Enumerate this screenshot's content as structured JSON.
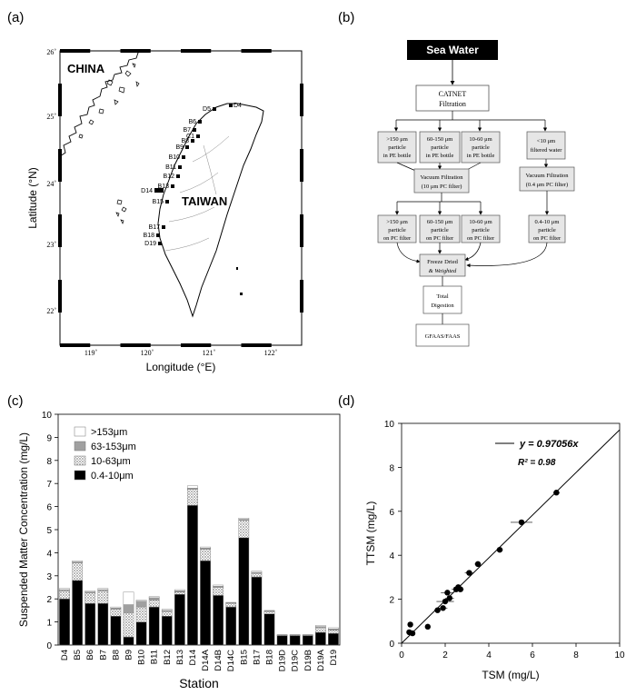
{
  "panels": {
    "a": "(a)",
    "b": "(b)",
    "c": "(c)",
    "d": "(d)"
  },
  "map": {
    "x_label": "Longitude (°E)",
    "y_label": "Latitude (°N)",
    "lon_ticks": [
      "119˚",
      "120˚",
      "121˚",
      "122˚"
    ],
    "lat_ticks": [
      "26˚",
      "25˚",
      "24˚",
      "23˚",
      "22˚"
    ],
    "china": "CHINA",
    "taiwan": "TAIWAN",
    "stations": [
      "D5",
      "D4",
      "B6",
      "B7",
      "C1",
      "B8",
      "B9",
      "B10",
      "B11",
      "B12",
      "B13",
      "D14",
      "B15",
      "B17",
      "B18",
      "D19"
    ]
  },
  "flow": {
    "sea_water": "Sea Water",
    "catnet_1": "CATNET",
    "catnet_2": "Filtration",
    "p150_1": ">150 μm",
    "p150_2": "particle",
    "p150_3": "in PE bottle",
    "p60_1": "60-150 μm",
    "p60_2": "particle",
    "p60_3": "in PE bottle",
    "p10_1": "10-60 μm",
    "p10_2": "particle",
    "p10_3": "in PE bottle",
    "fw_1": "<10 μm",
    "fw_2": "filtered water",
    "vac10_1": "Vacuum Filtration",
    "vac10_2": "(10 μm PC filter)",
    "vac04_1": "Vacuum Filtration",
    "vac04_2": "(0.4 μm PC filter)",
    "f150_1": ">150 μm",
    "f150_2": "particle",
    "f150_3": "on PC filter",
    "f60_1": "60-150 μm",
    "f60_2": "particle",
    "f60_3": "on PC filter",
    "f10_1": "10-60 μm",
    "f10_2": "particle",
    "f10_3": "on PC filter",
    "f04_1": "0.4-10 μm",
    "f04_2": "particle",
    "f04_3": "on PC filter",
    "freeze_1": "Freeze Dried",
    "freeze_2": "& Weighted",
    "total_1": "Total",
    "total_2": "Digestion",
    "gfaas": "GFAAS/FAAS"
  },
  "colors": {
    "c153": "#ffffff",
    "c63": "#a0a0a0",
    "c10": "#d8d8d8",
    "c04": "#000000"
  },
  "chart_data": [
    {
      "type": "bar",
      "stacked": true,
      "title": "",
      "xlabel": "Station",
      "ylabel": "Suspended Matter Concentration (mg/L)",
      "ylim": [
        0,
        10
      ],
      "yticks": [
        "0",
        "1",
        "2",
        "3",
        "4",
        "5",
        "6",
        "7",
        "8",
        "9",
        "10"
      ],
      "categories": [
        "D4",
        "B5",
        "B6",
        "B7",
        "B8",
        "B9",
        "B10",
        "B11",
        "B12",
        "B13",
        "D14",
        "D14A",
        "D14B",
        "D14C",
        "B15",
        "B17",
        "B18",
        "D19D",
        "D19C",
        "D19B",
        "D19A",
        "D19"
      ],
      "series": [
        {
          "name": "0.4-10μm",
          "values": [
            2.0,
            2.8,
            1.8,
            1.8,
            1.25,
            0.35,
            1.0,
            1.65,
            1.25,
            2.2,
            6.05,
            3.65,
            2.15,
            1.65,
            4.65,
            2.95,
            1.35,
            0.4,
            0.4,
            0.4,
            0.55,
            0.5
          ]
        },
        {
          "name": "10-63μm",
          "values": [
            0.35,
            0.75,
            0.45,
            0.55,
            0.3,
            1.05,
            0.65,
            0.3,
            0.2,
            0.1,
            0.7,
            0.5,
            0.35,
            0.15,
            0.75,
            0.15,
            0.1,
            0.02,
            0.02,
            0.02,
            0.2,
            0.15
          ]
        },
        {
          "name": "63-153μm",
          "values": [
            0.05,
            0.05,
            0.05,
            0.05,
            0.05,
            0.35,
            0.25,
            0.1,
            0.05,
            0.05,
            0.05,
            0.05,
            0.05,
            0.03,
            0.05,
            0.05,
            0.03,
            0.02,
            0.02,
            0.02,
            0.05,
            0.05
          ]
        },
        {
          "name": ">153μm",
          "values": [
            0.05,
            0.05,
            0.05,
            0.05,
            0.05,
            0.55,
            0.05,
            0.05,
            0.05,
            0.05,
            0.1,
            0.05,
            0.05,
            0.02,
            0.05,
            0.05,
            0.02,
            0.01,
            0.01,
            0.01,
            0.05,
            0.05
          ]
        }
      ]
    },
    {
      "type": "scatter",
      "title": "",
      "xlabel": "TSM (mg/L)",
      "ylabel": "TTSM (mg/L)",
      "xlim": [
        0,
        10
      ],
      "ylim": [
        0,
        10
      ],
      "xticks": [
        "0",
        "2",
        "4",
        "6",
        "8",
        "10"
      ],
      "yticks": [
        "0",
        "2",
        "4",
        "6",
        "8",
        "10"
      ],
      "fit_label": "y = 0.97056x",
      "r2_label": "R² = 0.98",
      "fit_slope": 0.97056,
      "points": [
        {
          "x": 0.35,
          "y": 0.5,
          "xerr": 0.1
        },
        {
          "x": 0.4,
          "y": 0.85,
          "xerr": 0.1
        },
        {
          "x": 0.5,
          "y": 0.45,
          "xerr": 0.1
        },
        {
          "x": 1.2,
          "y": 0.75,
          "xerr": 0.1
        },
        {
          "x": 1.65,
          "y": 1.5,
          "xerr": 0.15
        },
        {
          "x": 1.9,
          "y": 1.6,
          "xerr": 0.2
        },
        {
          "x": 2.0,
          "y": 1.9,
          "xerr": 0.4
        },
        {
          "x": 2.1,
          "y": 2.3,
          "xerr": 0.3
        },
        {
          "x": 2.2,
          "y": 2.05,
          "xerr": 0.2
        },
        {
          "x": 2.5,
          "y": 2.45,
          "xerr": 0.2
        },
        {
          "x": 2.6,
          "y": 2.55,
          "xerr": 0.2
        },
        {
          "x": 2.7,
          "y": 2.45,
          "xerr": 0.15
        },
        {
          "x": 3.1,
          "y": 3.2,
          "xerr": 0.2
        },
        {
          "x": 3.5,
          "y": 3.6,
          "xerr": 0.15
        },
        {
          "x": 4.5,
          "y": 4.25,
          "xerr": 0.15
        },
        {
          "x": 5.5,
          "y": 5.5,
          "xerr": 0.5
        },
        {
          "x": 7.1,
          "y": 6.85,
          "xerr": 0.15
        }
      ]
    }
  ]
}
